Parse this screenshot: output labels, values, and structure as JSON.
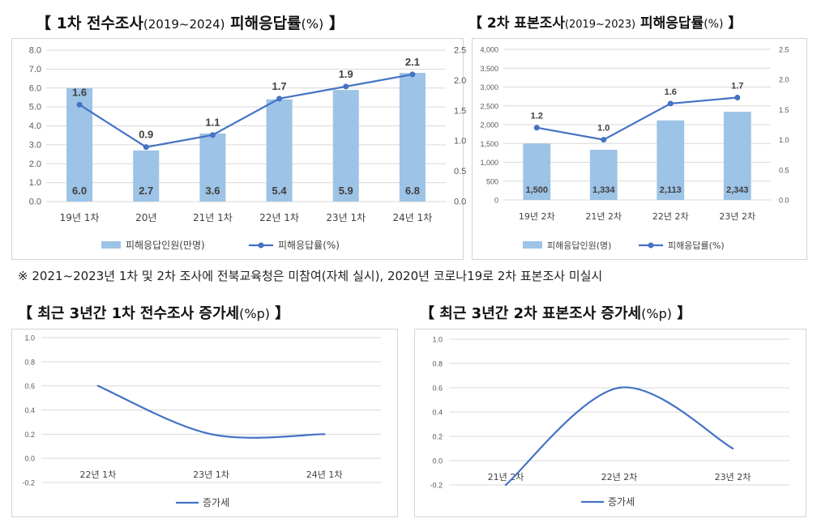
{
  "headings": {
    "chart1": {
      "open": "【",
      "title": "1차 전수조사",
      "years": "(2019~2024)",
      "subject": "피해응답률",
      "unit": "(%)",
      "close": "】"
    },
    "chart2": {
      "open": "【",
      "title": "2차 표본조사",
      "years": "(2019~2023)",
      "subject": "피해응답률",
      "unit": "(%)",
      "close": "】"
    },
    "chart3": {
      "open": "【",
      "title": "최근 3년간 1차 전수조사 증가세",
      "unit": "(%p)",
      "close": "】"
    },
    "chart4": {
      "open": "【",
      "title": "최근 3년간 2차 표본조사 증가세",
      "unit": "(%p)",
      "close": "】"
    }
  },
  "note": "※ 2021~2023년 1차 및 2차 조사에 전북교육청은 미참여(자체 실시), 2020년 코로나19로 2차 표본조사 미실시",
  "colors": {
    "bar": "#9dc3e6",
    "line": "#4472c4",
    "grid": "#d9d9d9",
    "axis_text": "#595959"
  },
  "chart_data": [
    {
      "id": "chart1",
      "type": "bar+line",
      "categories": [
        "19년 1차",
        "20년",
        "21년 1차",
        "22년 1차",
        "23년 1차",
        "24년 1차"
      ],
      "series": [
        {
          "name": "피해응답인원(만명)",
          "kind": "bar",
          "axis": "left",
          "values": [
            6.0,
            2.7,
            3.6,
            5.4,
            5.9,
            6.8
          ],
          "labels": [
            "6.0",
            "2.7",
            "3.6",
            "5.4",
            "5.9",
            "6.8"
          ]
        },
        {
          "name": "피해응답률(%)",
          "kind": "line",
          "axis": "right",
          "values": [
            1.6,
            0.9,
            1.1,
            1.7,
            1.9,
            2.1
          ],
          "labels": [
            "1.6",
            "0.9",
            "1.1",
            "1.7",
            "1.9",
            "2.1"
          ]
        }
      ],
      "left_axis": {
        "range": [
          0,
          8
        ],
        "ticks": [
          "0.0",
          "1.0",
          "2.0",
          "3.0",
          "4.0",
          "5.0",
          "6.0",
          "7.0",
          "8.0"
        ]
      },
      "right_axis": {
        "range": [
          0,
          2.5
        ],
        "ticks": [
          "0.0",
          "0.5",
          "1.0",
          "1.5",
          "2.0",
          "2.5"
        ]
      },
      "legend": [
        "피해응답인원(만명)",
        "피해응답률(%)"
      ],
      "legend_position": "bottom"
    },
    {
      "id": "chart2",
      "type": "bar+line",
      "categories": [
        "19년 2차",
        "21년 2차",
        "22년 2차",
        "23년 2차"
      ],
      "series": [
        {
          "name": "피해응답인원(명)",
          "kind": "bar",
          "axis": "left",
          "values": [
            1500,
            1334,
            2113,
            2343
          ],
          "labels": [
            "1,500",
            "1,334",
            "2,113",
            "2,343"
          ]
        },
        {
          "name": "피해응답률(%)",
          "kind": "line",
          "axis": "right",
          "values": [
            1.2,
            1.0,
            1.6,
            1.7
          ],
          "labels": [
            "1.2",
            "1.0",
            "1.6",
            "1.7"
          ]
        }
      ],
      "left_axis": {
        "range": [
          0,
          4000
        ],
        "ticks": [
          "0",
          "500",
          "1,000",
          "1,500",
          "2,000",
          "2,500",
          "3,000",
          "3,500",
          "4,000"
        ]
      },
      "right_axis": {
        "range": [
          0,
          2.5
        ],
        "ticks": [
          "0.0",
          "0.5",
          "1.0",
          "1.5",
          "2.0",
          "2.5"
        ]
      },
      "legend": [
        "피해응답인원(명)",
        "피해응답률(%)"
      ],
      "legend_position": "bottom"
    },
    {
      "id": "chart3",
      "type": "line",
      "smooth": true,
      "categories": [
        "22년 1차",
        "23년 1차",
        "24년 1차"
      ],
      "series": [
        {
          "name": "증가세",
          "values": [
            0.6,
            0.2,
            0.2
          ]
        }
      ],
      "y_axis": {
        "range": [
          -0.2,
          1.0
        ],
        "ticks": [
          "-0.2",
          "0.0",
          "0.2",
          "0.4",
          "0.6",
          "0.8",
          "1.0"
        ]
      },
      "legend": [
        "증가세"
      ],
      "legend_position": "bottom"
    },
    {
      "id": "chart4",
      "type": "line",
      "smooth": true,
      "categories": [
        "21년 2차",
        "22년 2차",
        "23년 2차"
      ],
      "series": [
        {
          "name": "증가세",
          "values": [
            -0.2,
            0.6,
            0.1
          ]
        }
      ],
      "y_axis": {
        "range": [
          -0.2,
          1.0
        ],
        "ticks": [
          "-0.2",
          "0.0",
          "0.2",
          "0.4",
          "0.6",
          "0.8",
          "1.0"
        ]
      },
      "legend": [
        "증가세"
      ],
      "legend_position": "bottom"
    }
  ]
}
